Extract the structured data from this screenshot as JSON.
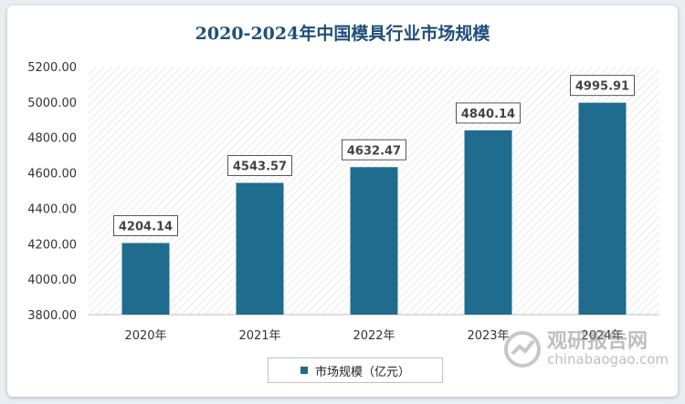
{
  "chart_data": {
    "type": "bar",
    "title": "2020-2024年中国模具行业市场规模",
    "categories": [
      "2020年",
      "2021年",
      "2022年",
      "2023年",
      "2024年"
    ],
    "series": [
      {
        "name": "市场规模（亿元）",
        "values": [
          4204.14,
          4543.57,
          4632.47,
          4840.14,
          4995.91
        ]
      }
    ],
    "data_labels": [
      "4204.14",
      "4543.57",
      "4632.47",
      "4840.14",
      "4995.91"
    ],
    "y_ticks": [
      "3800.00",
      "4000.00",
      "4200.00",
      "4400.00",
      "4600.00",
      "4800.00",
      "5000.00",
      "5200.00"
    ],
    "ylim": [
      3800,
      5200
    ],
    "grid": false,
    "legend_position": "bottom",
    "bar_color": "#1f6c8f"
  },
  "watermark": {
    "name_cn": "观研报告网",
    "domain": "chinabaogao.com"
  }
}
